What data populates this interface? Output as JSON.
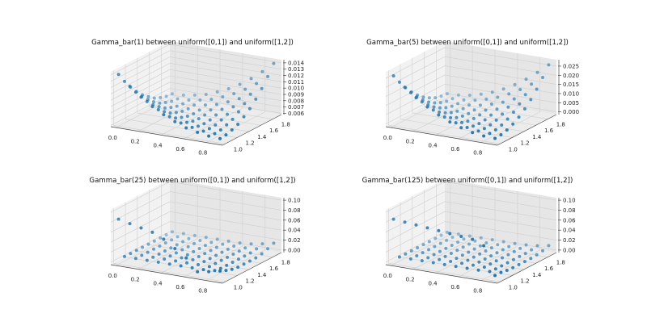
{
  "chart_data": [
    {
      "type": "scatter3d",
      "title": "Gamma_bar(1) between uniform([0,1]) and uniform([1,2])",
      "color": "#1f77b4",
      "x": [
        0.0,
        0.1,
        0.2,
        0.3,
        0.4,
        0.5,
        0.6,
        0.7,
        0.8,
        0.9
      ],
      "y": [
        1.0,
        1.1,
        1.2,
        1.3,
        1.4,
        1.5,
        1.6,
        1.7,
        1.8,
        1.9
      ],
      "xlim": [
        -0.045,
        0.945
      ],
      "ylim": [
        0.955,
        1.945
      ],
      "zlim": [
        0.0058,
        0.0145
      ],
      "xticks": [
        "0.0",
        "0.2",
        "0.4",
        "0.6",
        "0.8"
      ],
      "yticks": [
        "1.0",
        "1.2",
        "1.4",
        "1.6",
        "1.8"
      ],
      "zticks": [
        "0.006",
        "0.007",
        "0.008",
        "0.009",
        "0.010",
        "0.011",
        "0.012",
        "0.013",
        "0.014"
      ],
      "z": [
        [
          0.014,
          0.0124,
          0.011,
          0.0098,
          0.0088,
          0.008,
          0.0073,
          0.0069,
          0.0066,
          0.0065
        ],
        [
          0.0124,
          0.011,
          0.0098,
          0.0088,
          0.008,
          0.0073,
          0.0069,
          0.0066,
          0.0065,
          0.0066
        ],
        [
          0.011,
          0.0098,
          0.0088,
          0.008,
          0.0073,
          0.0069,
          0.0066,
          0.0065,
          0.0066,
          0.0069
        ],
        [
          0.0098,
          0.0088,
          0.008,
          0.0073,
          0.0069,
          0.0066,
          0.0065,
          0.0066,
          0.0069,
          0.0073
        ],
        [
          0.0088,
          0.008,
          0.0073,
          0.0069,
          0.0066,
          0.0065,
          0.0066,
          0.0069,
          0.0073,
          0.008
        ],
        [
          0.008,
          0.0073,
          0.0069,
          0.0066,
          0.0065,
          0.0066,
          0.0069,
          0.0073,
          0.008,
          0.0088
        ],
        [
          0.0073,
          0.0069,
          0.0066,
          0.0065,
          0.0066,
          0.0069,
          0.0073,
          0.008,
          0.0088,
          0.0098
        ],
        [
          0.0069,
          0.0066,
          0.0065,
          0.0066,
          0.0069,
          0.0073,
          0.008,
          0.0088,
          0.0098,
          0.011
        ],
        [
          0.0066,
          0.0065,
          0.0066,
          0.0069,
          0.0073,
          0.008,
          0.0088,
          0.0098,
          0.011,
          0.0124
        ],
        [
          0.0065,
          0.0066,
          0.0069,
          0.0073,
          0.008,
          0.0088,
          0.0098,
          0.011,
          0.0124,
          0.014
        ]
      ]
    },
    {
      "type": "scatter3d",
      "title": "Gamma_bar(5) between uniform([0,1]) and uniform([1,2])",
      "color": "#1f77b4",
      "x": [
        0.0,
        0.1,
        0.2,
        0.3,
        0.4,
        0.5,
        0.6,
        0.7,
        0.8,
        0.9
      ],
      "y": [
        1.0,
        1.1,
        1.2,
        1.3,
        1.4,
        1.5,
        1.6,
        1.7,
        1.8,
        1.9
      ],
      "xlim": [
        -0.045,
        0.945
      ],
      "ylim": [
        0.955,
        1.945
      ],
      "zlim": [
        -0.0015,
        0.0285
      ],
      "xticks": [
        "0.0",
        "0.2",
        "0.4",
        "0.6",
        "0.8"
      ],
      "yticks": [
        "1.0",
        "1.2",
        "1.4",
        "1.6",
        "1.8"
      ],
      "zticks": [
        "0.000",
        "0.005",
        "0.010",
        "0.015",
        "0.020",
        "0.025"
      ],
      "z": [
        [
          0.026,
          0.0208,
          0.0161,
          0.0121,
          0.0087,
          0.0059,
          0.0038,
          0.0022,
          0.0013,
          0.001
        ],
        [
          0.0208,
          0.0161,
          0.0121,
          0.0087,
          0.0059,
          0.0038,
          0.0022,
          0.0013,
          0.001,
          0.0013
        ],
        [
          0.0161,
          0.0121,
          0.0087,
          0.0059,
          0.0038,
          0.0022,
          0.0013,
          0.001,
          0.0013,
          0.0022
        ],
        [
          0.0121,
          0.0087,
          0.0059,
          0.0038,
          0.0022,
          0.0013,
          0.001,
          0.0013,
          0.0022,
          0.0038
        ],
        [
          0.0087,
          0.0059,
          0.0038,
          0.0022,
          0.0013,
          0.001,
          0.0013,
          0.0022,
          0.0038,
          0.0059
        ],
        [
          0.0059,
          0.0038,
          0.0022,
          0.0013,
          0.001,
          0.0013,
          0.0022,
          0.0038,
          0.0059,
          0.0087
        ],
        [
          0.0038,
          0.0022,
          0.0013,
          0.001,
          0.0013,
          0.0022,
          0.0038,
          0.0059,
          0.0087,
          0.0121
        ],
        [
          0.0022,
          0.0013,
          0.001,
          0.0013,
          0.0022,
          0.0038,
          0.0059,
          0.0087,
          0.0121,
          0.0161
        ],
        [
          0.0013,
          0.001,
          0.0013,
          0.0022,
          0.0038,
          0.0059,
          0.0087,
          0.0121,
          0.0161,
          0.0208
        ],
        [
          0.001,
          0.0013,
          0.0022,
          0.0038,
          0.0059,
          0.0087,
          0.0121,
          0.0161,
          0.0208,
          0.026
        ]
      ]
    },
    {
      "type": "scatter3d",
      "title": "Gamma_bar(25) between uniform([0,1]) and uniform([1,2])",
      "color": "#1f77b4",
      "x": [
        0.0,
        0.1,
        0.2,
        0.3,
        0.4,
        0.5,
        0.6,
        0.7,
        0.8,
        0.9
      ],
      "y": [
        1.0,
        1.1,
        1.2,
        1.3,
        1.4,
        1.5,
        1.6,
        1.7,
        1.8,
        1.9
      ],
      "xlim": [
        -0.045,
        0.945
      ],
      "ylim": [
        0.955,
        1.945
      ],
      "zlim": [
        -0.005,
        0.105
      ],
      "xticks": [
        "0.0",
        "0.2",
        "0.4",
        "0.6",
        "0.8"
      ],
      "yticks": [
        "1.0",
        "1.2",
        "1.4",
        "1.6",
        "1.8"
      ],
      "zticks": [
        "0.00",
        "0.02",
        "0.04",
        "0.06",
        "0.08",
        "0.10"
      ],
      "z": [
        [
          0.085,
          0.08,
          0.075,
          0.07,
          0.06,
          0.045,
          0.03,
          0.006,
          0.01,
          0.015
        ],
        [
          0.004,
          0.004,
          0.004,
          0.004,
          0.004,
          0.004,
          0.004,
          0.004,
          0.006,
          0.01
        ],
        [
          0.004,
          0.004,
          0.004,
          0.004,
          0.004,
          0.004,
          0.004,
          0.004,
          0.004,
          0.006
        ],
        [
          0.004,
          0.004,
          0.004,
          0.004,
          0.004,
          0.004,
          0.004,
          0.004,
          0.004,
          0.004
        ],
        [
          0.004,
          0.004,
          0.004,
          0.004,
          0.004,
          0.004,
          0.004,
          0.004,
          0.004,
          0.004
        ],
        [
          0.004,
          0.004,
          0.004,
          0.004,
          0.004,
          0.004,
          0.004,
          0.004,
          0.004,
          0.004
        ],
        [
          0.004,
          0.004,
          0.004,
          0.004,
          0.004,
          0.004,
          0.004,
          0.004,
          0.004,
          0.004
        ],
        [
          0.004,
          0.004,
          0.004,
          0.004,
          0.004,
          0.004,
          0.004,
          0.004,
          0.004,
          0.006
        ],
        [
          0.004,
          0.004,
          0.004,
          0.004,
          0.004,
          0.004,
          0.004,
          0.004,
          0.006,
          0.01
        ],
        [
          0.004,
          0.004,
          0.004,
          0.004,
          0.004,
          0.004,
          0.004,
          0.006,
          0.01,
          0.015
        ]
      ]
    },
    {
      "type": "scatter3d",
      "title": "Gamma_bar(125) between uniform([0,1]) and uniform([1,2])",
      "color": "#1f77b4",
      "x": [
        0.0,
        0.1,
        0.2,
        0.3,
        0.4,
        0.5,
        0.6,
        0.7,
        0.8,
        0.9
      ],
      "y": [
        1.0,
        1.1,
        1.2,
        1.3,
        1.4,
        1.5,
        1.6,
        1.7,
        1.8,
        1.9
      ],
      "xlim": [
        -0.045,
        0.945
      ],
      "ylim": [
        0.955,
        1.945
      ],
      "zlim": [
        -0.005,
        0.105
      ],
      "xticks": [
        "0.0",
        "0.2",
        "0.4",
        "0.6",
        "0.8"
      ],
      "yticks": [
        "1.0",
        "1.2",
        "1.4",
        "1.6",
        "1.8"
      ],
      "zticks": [
        "0.00",
        "0.02",
        "0.04",
        "0.06",
        "0.08",
        "0.10"
      ],
      "z": [
        [
          0.085,
          0.083,
          0.081,
          0.079,
          0.077,
          0.075,
          0.073,
          0.071,
          0.062,
          0.006
        ],
        [
          0.003,
          0.003,
          0.003,
          0.003,
          0.003,
          0.003,
          0.003,
          0.003,
          0.004,
          0.006
        ],
        [
          0.003,
          0.003,
          0.003,
          0.003,
          0.003,
          0.003,
          0.003,
          0.003,
          0.003,
          0.004
        ],
        [
          0.003,
          0.003,
          0.003,
          0.003,
          0.003,
          0.003,
          0.003,
          0.003,
          0.003,
          0.003
        ],
        [
          0.003,
          0.003,
          0.003,
          0.003,
          0.003,
          0.003,
          0.003,
          0.003,
          0.003,
          0.003
        ],
        [
          0.003,
          0.003,
          0.003,
          0.003,
          0.003,
          0.003,
          0.003,
          0.003,
          0.003,
          0.003
        ],
        [
          0.003,
          0.003,
          0.003,
          0.003,
          0.003,
          0.003,
          0.003,
          0.003,
          0.003,
          0.003
        ],
        [
          0.003,
          0.003,
          0.003,
          0.003,
          0.003,
          0.003,
          0.003,
          0.003,
          0.003,
          0.004
        ],
        [
          0.003,
          0.003,
          0.003,
          0.003,
          0.003,
          0.003,
          0.003,
          0.003,
          0.004,
          0.006
        ],
        [
          0.003,
          0.003,
          0.003,
          0.003,
          0.003,
          0.003,
          0.003,
          0.004,
          0.006,
          0.01
        ]
      ]
    }
  ]
}
